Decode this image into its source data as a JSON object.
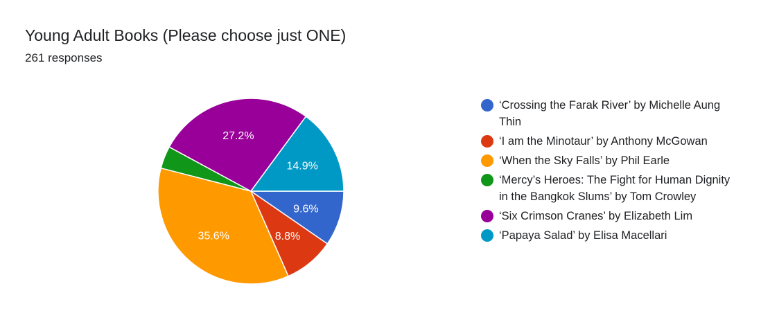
{
  "header": {
    "title": "Young Adult Books (Please choose just ONE)",
    "responses": "261 responses"
  },
  "chart_data": {
    "type": "pie",
    "title": "Young Adult Books (Please choose just ONE)",
    "start_angle_deg": 90,
    "direction": "clockwise",
    "slices": [
      {
        "label": "‘Crossing the Farak River’ by Michelle Aung Thin",
        "value": 9.6,
        "display": "9.6%",
        "color": "#3366cc"
      },
      {
        "label": "‘I am the Minotaur’ by Anthony McGowan",
        "value": 8.8,
        "display": "8.8%",
        "color": "#dc3912"
      },
      {
        "label": "‘When the Sky Falls’ by Phil Earle",
        "value": 35.6,
        "display": "35.6%",
        "color": "#ff9900"
      },
      {
        "label": "‘Mercy’s Heroes: The Fight for Human Dignity in the Bangkok Slums’ by Tom Crowley",
        "value": 3.9,
        "display": "",
        "color": "#109618"
      },
      {
        "label": "‘Six Crimson Cranes’ by Elizabeth Lim",
        "value": 27.2,
        "display": "27.2%",
        "color": "#990099"
      },
      {
        "label": "‘Papaya Salad’ by Elisa Macellari",
        "value": 14.9,
        "display": "14.9%",
        "color": "#0099c6"
      }
    ],
    "legend_position": "right"
  }
}
